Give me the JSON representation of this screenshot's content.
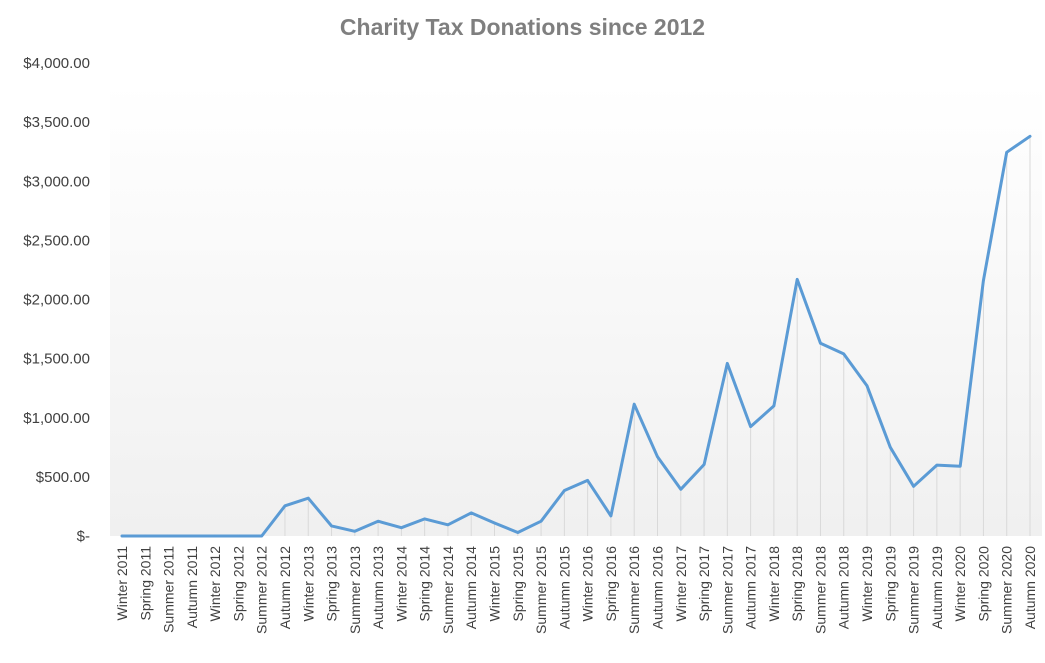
{
  "chart_data": {
    "type": "line",
    "title": "Charity Tax Donations since 2012",
    "xlabel": "",
    "ylabel": "",
    "ylim": [
      0,
      4000
    ],
    "y_ticks": [
      {
        "value": 0,
        "label": "$-"
      },
      {
        "value": 500,
        "label": "$500.00"
      },
      {
        "value": 1000,
        "label": "$1,000.00"
      },
      {
        "value": 1500,
        "label": "$1,500.00"
      },
      {
        "value": 2000,
        "label": "$2,000.00"
      },
      {
        "value": 2500,
        "label": "$2,500.00"
      },
      {
        "value": 3000,
        "label": "$3,000.00"
      },
      {
        "value": 3500,
        "label": "$3,500.00"
      },
      {
        "value": 4000,
        "label": "$4,000.00"
      }
    ],
    "categories": [
      "Winter 2011",
      "Spring 2011",
      "Summer 2011",
      "Autumn 2011",
      "Winter 2012",
      "Spring 2012",
      "Summer 2012",
      "Autumn 2012",
      "Winter 2013",
      "Spring 2013",
      "Summer 2013",
      "Autumn 2013",
      "Winter 2014",
      "Spring 2014",
      "Summer 2014",
      "Autumn 2014",
      "Winter 2015",
      "Spring 2015",
      "Summer 2015",
      "Autumn 2015",
      "Winter 2016",
      "Spring 2016",
      "Summer 2016",
      "Autumn 2016",
      "Winter 2017",
      "Spring 2017",
      "Summer 2017",
      "Autumn 2017",
      "Winter 2018",
      "Spring 2018",
      "Summer 2018",
      "Autumn 2018",
      "Winter 2019",
      "Spring 2019",
      "Summer 2019",
      "Autumn 2019",
      "Winter 2020",
      "Spring 2020",
      "Summer 2020",
      "Autumn 2020"
    ],
    "series": [
      {
        "values": [
          0,
          0,
          0,
          0,
          0,
          0,
          0,
          255,
          320,
          85,
          40,
          125,
          70,
          145,
          95,
          195,
          110,
          30,
          125,
          385,
          470,
          170,
          1115,
          670,
          395,
          605,
          1460,
          925,
          1100,
          2170,
          1630,
          1540,
          1270,
          750,
          420,
          600,
          590,
          2160,
          3245,
          3380
        ]
      }
    ],
    "grid": "vertical drop lines",
    "legend": "none",
    "line_color": "#5b9bd5",
    "background_gradient": [
      "#ffffff",
      "#f0f0f0"
    ]
  }
}
